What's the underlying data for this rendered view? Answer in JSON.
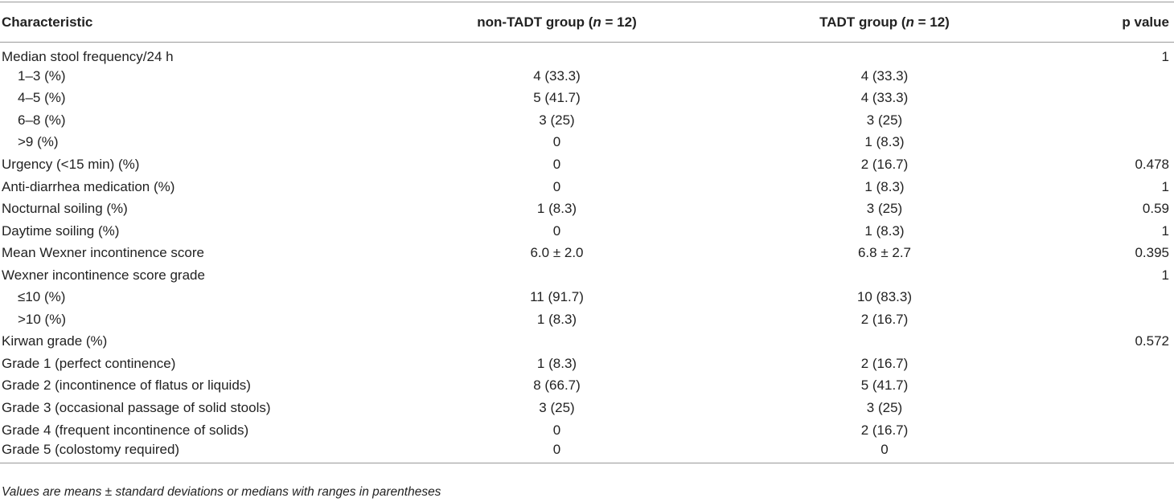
{
  "table": {
    "header": [
      [
        "Characteristic"
      ],
      [
        "non-TADT group (",
        "n",
        " = 12)"
      ],
      [
        "TADT group (",
        "n",
        " = 12)"
      ],
      [
        "p value"
      ]
    ],
    "rows": [
      {
        "cells": [
          "Median stool frequency/24 h",
          null,
          null,
          "1"
        ]
      },
      {
        "cells": [
          "1–3 (%)",
          "4 (33.3)",
          "4 (33.3)",
          null
        ],
        "indent": true
      },
      {
        "cells": [
          "4–5 (%)",
          "5 (41.7)",
          "4 (33.3)",
          null
        ],
        "indent": true
      },
      {
        "cells": [
          "6–8 (%)",
          "3 (25)",
          "3 (25)",
          null
        ],
        "indent": true
      },
      {
        "cells": [
          ">9 (%)",
          "0",
          "1 (8.3)",
          null
        ],
        "indent": true
      },
      {
        "cells": [
          "Urgency (<15 min) (%)",
          "0",
          "2 (16.7)",
          "0.478"
        ]
      },
      {
        "cells": [
          "Anti-diarrhea medication (%)",
          "0",
          "1 (8.3)",
          "1"
        ]
      },
      {
        "cells": [
          "Nocturnal soiling (%)",
          "1 (8.3)",
          "3 (25)",
          "0.59"
        ]
      },
      {
        "cells": [
          "Daytime soiling (%)",
          "0",
          "1 (8.3)",
          "1"
        ]
      },
      {
        "cells": [
          "Mean Wexner incontinence score",
          "6.0 ± 2.0",
          "6.8 ± 2.7",
          "0.395"
        ]
      },
      {
        "cells": [
          "Wexner incontinence score grade",
          null,
          null,
          "1"
        ]
      },
      {
        "cells": [
          "≤10 (%)",
          "11 (91.7)",
          "10 (83.3)",
          null
        ],
        "indent": true
      },
      {
        "cells": [
          ">10 (%)",
          "1 (8.3)",
          "2 (16.7)",
          null
        ],
        "indent": true
      },
      {
        "cells": [
          "Kirwan grade (%)",
          null,
          null,
          "0.572"
        ]
      },
      {
        "cells": [
          "Grade 1 (perfect continence)",
          "1 (8.3)",
          "2 (16.7)",
          null
        ]
      },
      {
        "cells": [
          "Grade 2 (incontinence of flatus or liquids)",
          "8 (66.7)",
          "5 (41.7)",
          null
        ]
      },
      {
        "cells": [
          "Grade 3 (occasional passage of solid stools)",
          "3 (25)",
          "3 (25)",
          null
        ]
      },
      {
        "cells": [
          "Grade 4 (frequent incontinence of solids)",
          "0",
          "2 (16.7)",
          null
        ]
      },
      {
        "cells": [
          "Grade 5 (colostomy required)",
          "0",
          "0",
          null
        ]
      }
    ],
    "footnote": "Values are means ± standard deviations or medians with ranges in parentheses"
  }
}
